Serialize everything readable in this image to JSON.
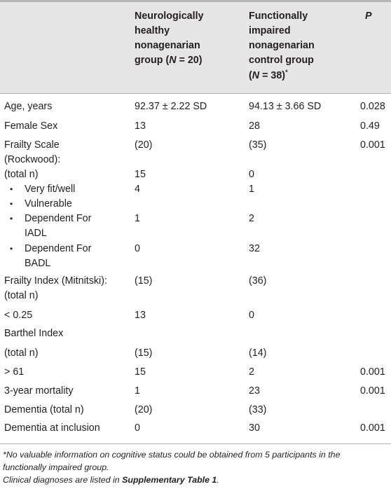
{
  "header": {
    "col1": [
      "Neurologically",
      "healthy",
      "nonagenarian"
    ],
    "col1_group_a": "group (",
    "col1_n": "N",
    "col1_group_b": " = 20)",
    "col2": [
      "Functionally",
      "impaired",
      "nonagenarian",
      "control group"
    ],
    "col2_open": "(",
    "col2_n": "N",
    "col2_rest": " = 38)",
    "col2_mark": "*",
    "col3": "P"
  },
  "rows": {
    "age": {
      "label": "Age, years",
      "healthy": "92.37 ± 2.22 SD",
      "impaired": "94.13 ± 3.66 SD",
      "p": "0.028"
    },
    "female": {
      "label": "Female Sex",
      "healthy": "13",
      "impaired": "28",
      "p": "0.49"
    },
    "frailty_scale": {
      "label1": "Frailty Scale",
      "label2": "(Rockwood):",
      "healthy": "(20)",
      "impaired": "(35)",
      "p": "0.001"
    },
    "frailty_total": {
      "label": "(total n)",
      "healthy": "15",
      "impaired": "0"
    },
    "very_fit": {
      "label": "Very fit/well",
      "healthy": "4",
      "impaired": "1"
    },
    "vulnerable": {
      "label": "Vulnerable"
    },
    "dep_iadl": {
      "label1": "Dependent For",
      "label2": "IADL",
      "healthy": "1",
      "impaired": "2"
    },
    "dep_badl": {
      "label1": "Dependent For",
      "label2": "BADL",
      "healthy": "0",
      "impaired": "32"
    },
    "frailty_index": {
      "label1": "Frailty Index (Mitnitski):",
      "label2": "(total n)",
      "healthy": "(15)",
      "impaired": "(36)"
    },
    "lt025": {
      "label": "< 0.25",
      "healthy": "13",
      "impaired": "0"
    },
    "barthel": {
      "label": "Barthel Index"
    },
    "barthel_total": {
      "label": "(total n)",
      "healthy": "(15)",
      "impaired": "(14)"
    },
    "gt61": {
      "label": "> 61",
      "healthy": "15",
      "impaired": "2",
      "p": "0.001"
    },
    "mortality": {
      "label": "3-year mortality",
      "healthy": "1",
      "impaired": "23",
      "p": "0.001"
    },
    "dementia_total": {
      "label": "Dementia (total n)",
      "healthy": "(20)",
      "impaired": "(33)"
    },
    "dementia_inclusion": {
      "label": "Dementia at inclusion",
      "healthy": "0",
      "impaired": "30",
      "p": "0.001"
    }
  },
  "bullet": "•",
  "footnotes": {
    "line1": "*No valuable information on cognitive status could be obtained from 5 participants in the",
    "line2": "functionally impaired group.",
    "line3_a": "Clinical diagnoses are listed in ",
    "line3_b": "Supplementary Table 1",
    "line3_c": "."
  }
}
